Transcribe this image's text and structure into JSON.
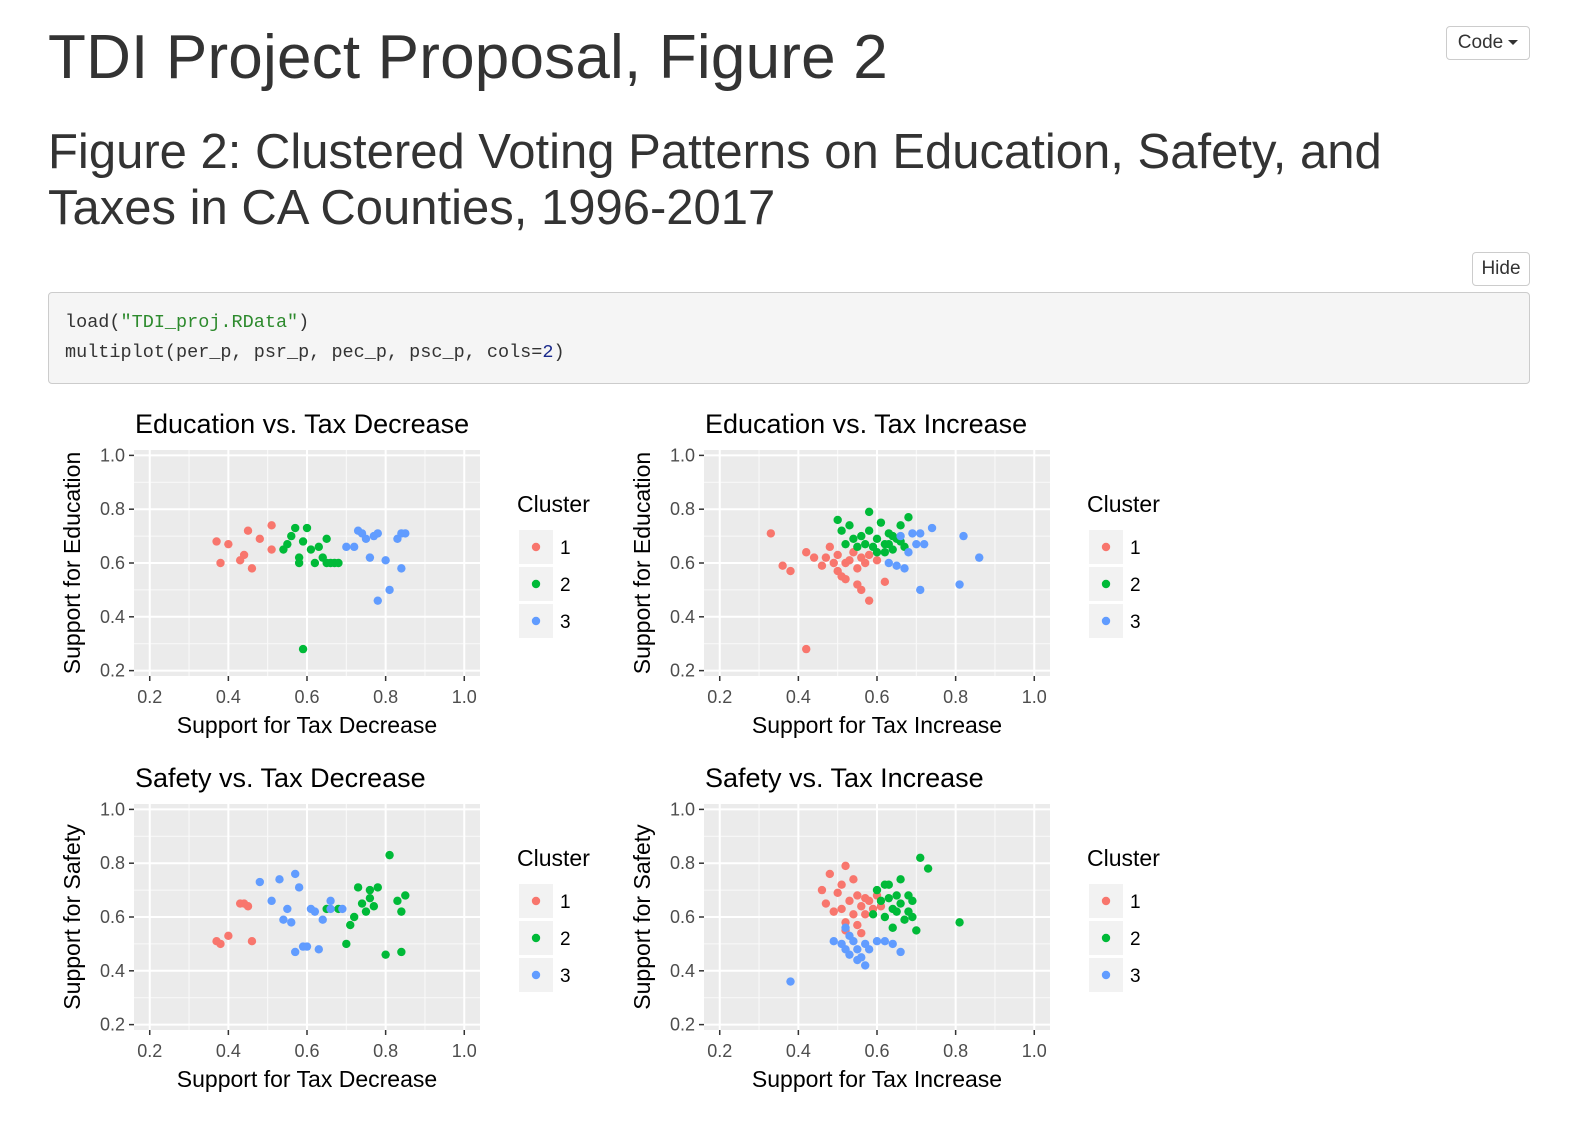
{
  "page": {
    "title": "TDI Project Proposal, Figure 2",
    "code_button": "Code",
    "section_heading": "Figure 2: Clustered Voting Patterns on Education, Safety, and Taxes in CA Counties, 1996-2017",
    "hide_button": "Hide"
  },
  "code": {
    "line1": {
      "fn": "load(",
      "arg": "\"TDI_proj.RData\"",
      "close": ")"
    },
    "line2": {
      "pre": "multiplot(per_p, psr_p, pec_p, psc_p, cols=",
      "num": "2",
      "close": ")"
    }
  },
  "colors": {
    "cluster1": "#F8766D",
    "cluster2": "#00BA38",
    "cluster3": "#619CFF",
    "panel_bg": "#EBEBEB"
  },
  "chart_data": [
    {
      "type": "scatter",
      "title": "Education vs. Tax Decrease",
      "xlabel": "Support for Tax Decrease",
      "ylabel": "Support for Education",
      "xlim": [
        0.2,
        1.0
      ],
      "ylim": [
        0.2,
        1.0
      ],
      "xticks": [
        "0.2",
        "0.4",
        "0.6",
        "0.8",
        "1.0"
      ],
      "yticks": [
        "0.2",
        "0.4",
        "0.6",
        "0.8",
        "1.0"
      ],
      "legend_title": "Cluster",
      "legend_position": "right",
      "series": [
        {
          "name": "1",
          "points": [
            [
              0.37,
              0.68
            ],
            [
              0.38,
              0.6
            ],
            [
              0.4,
              0.67
            ],
            [
              0.43,
              0.61
            ],
            [
              0.44,
              0.63
            ],
            [
              0.45,
              0.72
            ],
            [
              0.46,
              0.58
            ],
            [
              0.48,
              0.69
            ],
            [
              0.51,
              0.65
            ],
            [
              0.51,
              0.74
            ]
          ]
        },
        {
          "name": "2",
          "points": [
            [
              0.54,
              0.65
            ],
            [
              0.55,
              0.67
            ],
            [
              0.56,
              0.7
            ],
            [
              0.57,
              0.73
            ],
            [
              0.58,
              0.6
            ],
            [
              0.58,
              0.62
            ],
            [
              0.59,
              0.68
            ],
            [
              0.6,
              0.73
            ],
            [
              0.61,
              0.65
            ],
            [
              0.62,
              0.6
            ],
            [
              0.63,
              0.66
            ],
            [
              0.64,
              0.62
            ],
            [
              0.65,
              0.69
            ],
            [
              0.65,
              0.6
            ],
            [
              0.66,
              0.6
            ],
            [
              0.59,
              0.28
            ],
            [
              0.67,
              0.6
            ],
            [
              0.68,
              0.6
            ]
          ]
        },
        {
          "name": "3",
          "points": [
            [
              0.7,
              0.66
            ],
            [
              0.72,
              0.66
            ],
            [
              0.73,
              0.72
            ],
            [
              0.74,
              0.71
            ],
            [
              0.75,
              0.69
            ],
            [
              0.76,
              0.62
            ],
            [
              0.77,
              0.7
            ],
            [
              0.78,
              0.71
            ],
            [
              0.78,
              0.46
            ],
            [
              0.8,
              0.61
            ],
            [
              0.81,
              0.5
            ],
            [
              0.83,
              0.69
            ],
            [
              0.84,
              0.71
            ],
            [
              0.84,
              0.58
            ],
            [
              0.85,
              0.71
            ]
          ]
        }
      ]
    },
    {
      "type": "scatter",
      "title": "Education vs. Tax Increase",
      "xlabel": "Support for Tax Increase",
      "ylabel": "Support for Education",
      "xlim": [
        0.2,
        1.0
      ],
      "ylim": [
        0.2,
        1.0
      ],
      "xticks": [
        "0.2",
        "0.4",
        "0.6",
        "0.8",
        "1.0"
      ],
      "yticks": [
        "0.2",
        "0.4",
        "0.6",
        "0.8",
        "1.0"
      ],
      "legend_title": "Cluster",
      "legend_position": "right",
      "series": [
        {
          "name": "1",
          "points": [
            [
              0.33,
              0.71
            ],
            [
              0.36,
              0.59
            ],
            [
              0.38,
              0.57
            ],
            [
              0.42,
              0.28
            ],
            [
              0.42,
              0.64
            ],
            [
              0.44,
              0.62
            ],
            [
              0.46,
              0.59
            ],
            [
              0.47,
              0.62
            ],
            [
              0.48,
              0.66
            ],
            [
              0.49,
              0.6
            ],
            [
              0.5,
              0.57
            ],
            [
              0.5,
              0.63
            ],
            [
              0.51,
              0.55
            ],
            [
              0.52,
              0.6
            ],
            [
              0.52,
              0.54
            ],
            [
              0.53,
              0.61
            ],
            [
              0.54,
              0.64
            ],
            [
              0.55,
              0.58
            ],
            [
              0.55,
              0.52
            ],
            [
              0.56,
              0.62
            ],
            [
              0.56,
              0.5
            ],
            [
              0.57,
              0.6
            ],
            [
              0.58,
              0.63
            ],
            [
              0.58,
              0.46
            ],
            [
              0.6,
              0.61
            ],
            [
              0.62,
              0.53
            ]
          ]
        },
        {
          "name": "2",
          "points": [
            [
              0.5,
              0.76
            ],
            [
              0.51,
              0.72
            ],
            [
              0.52,
              0.67
            ],
            [
              0.53,
              0.74
            ],
            [
              0.54,
              0.69
            ],
            [
              0.55,
              0.66
            ],
            [
              0.56,
              0.7
            ],
            [
              0.57,
              0.67
            ],
            [
              0.58,
              0.72
            ],
            [
              0.58,
              0.79
            ],
            [
              0.59,
              0.66
            ],
            [
              0.6,
              0.69
            ],
            [
              0.61,
              0.75
            ],
            [
              0.62,
              0.67
            ],
            [
              0.62,
              0.64
            ],
            [
              0.63,
              0.71
            ],
            [
              0.63,
              0.67
            ],
            [
              0.64,
              0.65
            ],
            [
              0.65,
              0.69
            ],
            [
              0.66,
              0.68
            ],
            [
              0.66,
              0.74
            ],
            [
              0.67,
              0.66
            ],
            [
              0.68,
              0.77
            ],
            [
              0.6,
              0.64
            ],
            [
              0.64,
              0.7
            ]
          ]
        },
        {
          "name": "3",
          "points": [
            [
              0.63,
              0.6
            ],
            [
              0.65,
              0.59
            ],
            [
              0.66,
              0.7
            ],
            [
              0.67,
              0.58
            ],
            [
              0.68,
              0.64
            ],
            [
              0.69,
              0.71
            ],
            [
              0.7,
              0.67
            ],
            [
              0.71,
              0.71
            ],
            [
              0.71,
              0.5
            ],
            [
              0.72,
              0.67
            ],
            [
              0.74,
              0.73
            ],
            [
              0.81,
              0.52
            ],
            [
              0.82,
              0.7
            ],
            [
              0.86,
              0.62
            ]
          ]
        }
      ]
    },
    {
      "type": "scatter",
      "title": "Safety vs. Tax Decrease",
      "xlabel": "Support for Tax Decrease",
      "ylabel": "Support for Safety",
      "xlim": [
        0.2,
        1.0
      ],
      "ylim": [
        0.2,
        1.0
      ],
      "xticks": [
        "0.2",
        "0.4",
        "0.6",
        "0.8",
        "1.0"
      ],
      "yticks": [
        "0.2",
        "0.4",
        "0.6",
        "0.8",
        "1.0"
      ],
      "legend_title": "Cluster",
      "legend_position": "right",
      "series": [
        {
          "name": "1",
          "points": [
            [
              0.37,
              0.51
            ],
            [
              0.38,
              0.5
            ],
            [
              0.4,
              0.53
            ],
            [
              0.43,
              0.65
            ],
            [
              0.44,
              0.65
            ],
            [
              0.45,
              0.64
            ],
            [
              0.46,
              0.51
            ]
          ]
        },
        {
          "name": "2",
          "points": [
            [
              0.65,
              0.63
            ],
            [
              0.68,
              0.63
            ],
            [
              0.7,
              0.5
            ],
            [
              0.71,
              0.57
            ],
            [
              0.72,
              0.6
            ],
            [
              0.73,
              0.71
            ],
            [
              0.74,
              0.65
            ],
            [
              0.75,
              0.62
            ],
            [
              0.76,
              0.7
            ],
            [
              0.76,
              0.67
            ],
            [
              0.77,
              0.64
            ],
            [
              0.78,
              0.71
            ],
            [
              0.8,
              0.46
            ],
            [
              0.81,
              0.83
            ],
            [
              0.83,
              0.66
            ],
            [
              0.84,
              0.62
            ],
            [
              0.84,
              0.47
            ],
            [
              0.85,
              0.68
            ]
          ]
        },
        {
          "name": "3",
          "points": [
            [
              0.48,
              0.73
            ],
            [
              0.51,
              0.66
            ],
            [
              0.53,
              0.74
            ],
            [
              0.54,
              0.59
            ],
            [
              0.55,
              0.63
            ],
            [
              0.56,
              0.58
            ],
            [
              0.57,
              0.47
            ],
            [
              0.57,
              0.76
            ],
            [
              0.58,
              0.71
            ],
            [
              0.59,
              0.49
            ],
            [
              0.6,
              0.49
            ],
            [
              0.61,
              0.63
            ],
            [
              0.62,
              0.62
            ],
            [
              0.63,
              0.48
            ],
            [
              0.64,
              0.59
            ],
            [
              0.66,
              0.66
            ],
            [
              0.66,
              0.63
            ],
            [
              0.69,
              0.63
            ]
          ]
        }
      ]
    },
    {
      "type": "scatter",
      "title": "Safety vs. Tax Increase",
      "xlabel": "Support for Tax Increase",
      "ylabel": "Support for Safety",
      "xlim": [
        0.2,
        1.0
      ],
      "ylim": [
        0.2,
        1.0
      ],
      "xticks": [
        "0.2",
        "0.4",
        "0.6",
        "0.8",
        "1.0"
      ],
      "yticks": [
        "0.2",
        "0.4",
        "0.6",
        "0.8",
        "1.0"
      ],
      "legend_title": "Cluster",
      "legend_position": "right",
      "series": [
        {
          "name": "1",
          "points": [
            [
              0.46,
              0.7
            ],
            [
              0.47,
              0.65
            ],
            [
              0.48,
              0.76
            ],
            [
              0.49,
              0.62
            ],
            [
              0.5,
              0.69
            ],
            [
              0.51,
              0.72
            ],
            [
              0.51,
              0.63
            ],
            [
              0.52,
              0.79
            ],
            [
              0.52,
              0.58
            ],
            [
              0.53,
              0.66
            ],
            [
              0.54,
              0.74
            ],
            [
              0.54,
              0.61
            ],
            [
              0.55,
              0.68
            ],
            [
              0.55,
              0.57
            ],
            [
              0.56,
              0.64
            ],
            [
              0.57,
              0.67
            ],
            [
              0.57,
              0.61
            ],
            [
              0.58,
              0.66
            ],
            [
              0.59,
              0.63
            ],
            [
              0.6,
              0.68
            ],
            [
              0.61,
              0.64
            ],
            [
              0.52,
              0.55
            ],
            [
              0.56,
              0.54
            ]
          ]
        },
        {
          "name": "2",
          "points": [
            [
              0.59,
              0.61
            ],
            [
              0.6,
              0.7
            ],
            [
              0.61,
              0.66
            ],
            [
              0.62,
              0.72
            ],
            [
              0.62,
              0.6
            ],
            [
              0.63,
              0.67
            ],
            [
              0.64,
              0.63
            ],
            [
              0.64,
              0.56
            ],
            [
              0.65,
              0.68
            ],
            [
              0.65,
              0.62
            ],
            [
              0.66,
              0.74
            ],
            [
              0.66,
              0.65
            ],
            [
              0.67,
              0.59
            ],
            [
              0.68,
              0.68
            ],
            [
              0.68,
              0.62
            ],
            [
              0.69,
              0.66
            ],
            [
              0.69,
              0.6
            ],
            [
              0.7,
              0.55
            ],
            [
              0.71,
              0.82
            ],
            [
              0.73,
              0.78
            ],
            [
              0.81,
              0.58
            ],
            [
              0.63,
              0.72
            ]
          ]
        },
        {
          "name": "3",
          "points": [
            [
              0.38,
              0.36
            ],
            [
              0.49,
              0.51
            ],
            [
              0.51,
              0.5
            ],
            [
              0.52,
              0.48
            ],
            [
              0.53,
              0.53
            ],
            [
              0.53,
              0.46
            ],
            [
              0.54,
              0.51
            ],
            [
              0.55,
              0.48
            ],
            [
              0.56,
              0.45
            ],
            [
              0.57,
              0.5
            ],
            [
              0.57,
              0.42
            ],
            [
              0.58,
              0.48
            ],
            [
              0.6,
              0.51
            ],
            [
              0.62,
              0.51
            ],
            [
              0.64,
              0.5
            ],
            [
              0.66,
              0.47
            ],
            [
              0.52,
              0.56
            ],
            [
              0.55,
              0.44
            ]
          ]
        }
      ]
    }
  ]
}
